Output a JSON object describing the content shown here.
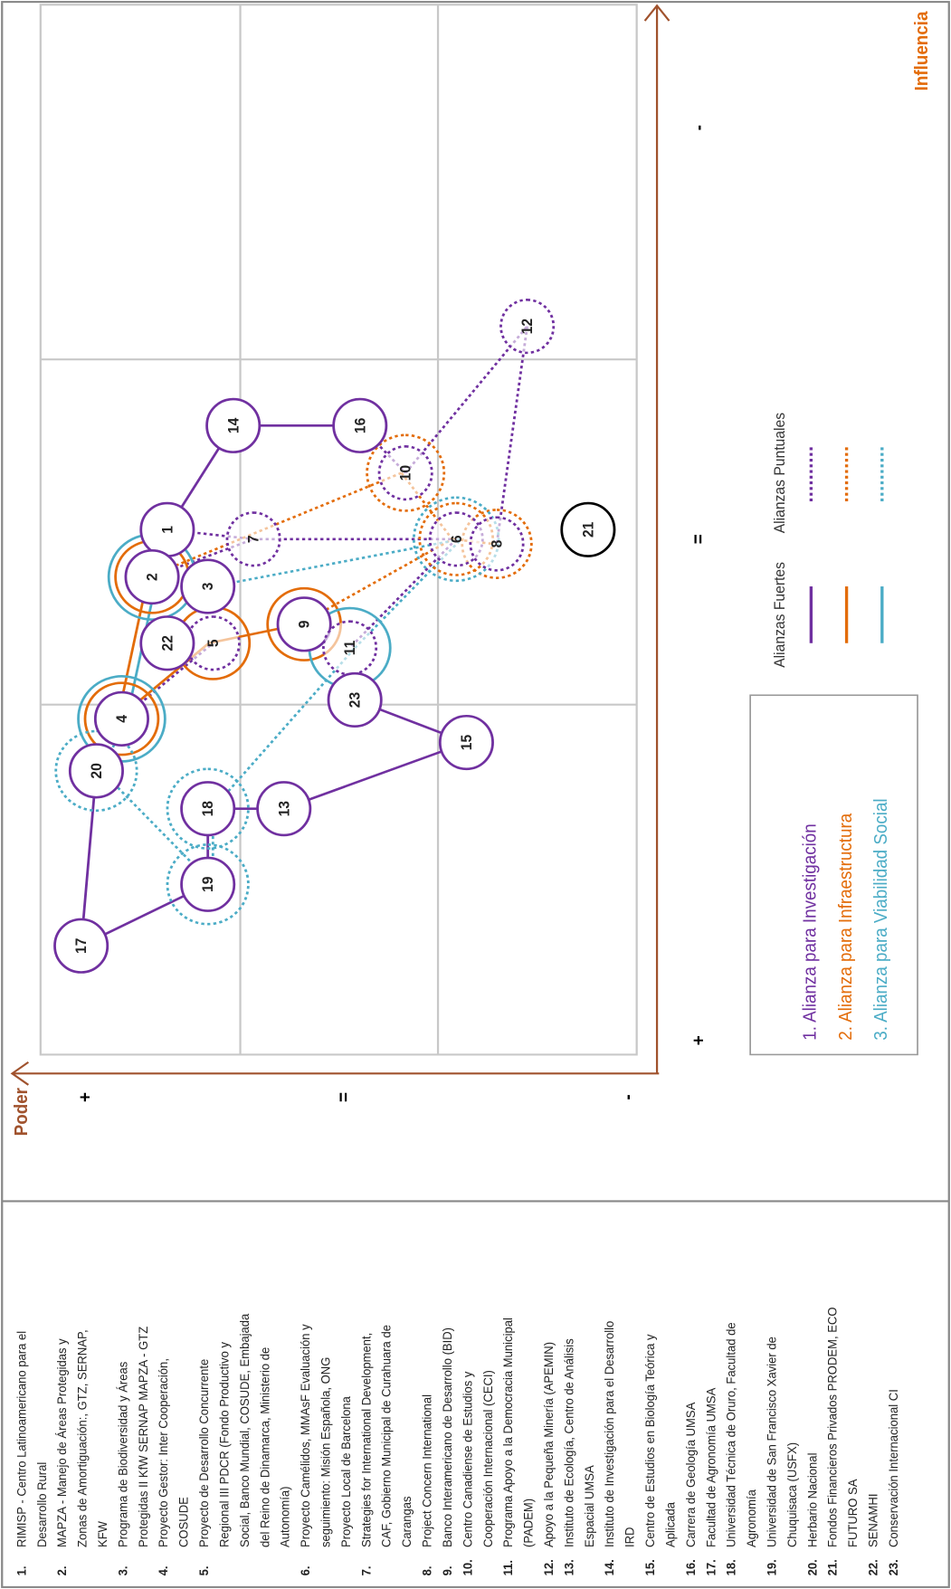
{
  "list": [
    {
      "number": "1.",
      "lines": [
        "RIMISP - Centro Latinoamericano para el",
        "Desarrollo Rural"
      ]
    },
    {
      "number": "2.",
      "lines": [
        "MAPZA - Manejo de Áreas Protegidas y",
        "Zonas de Amortiguación:, GTZ, SERNAP,",
        "KFW"
      ]
    },
    {
      "number": "3.",
      "lines": [
        "Programa de Biodiversidad y Áreas",
        "Protegidas II  KfW SERNAP MAPZA - GTZ"
      ]
    },
    {
      "number": "4.",
      "lines": [
        "Proyecto Gestor: Inter Cooperación,",
        "COSUDE"
      ]
    },
    {
      "number": "5.",
      "lines": [
        "Proyecto de Desarrollo Concurrente",
        "Regional III PDCR (Fondo Productivo y",
        "Social, Banco Mundial, COSUDE, Embajada",
        "del Reino de Dinamarca, Ministerio de",
        "Autonomía)"
      ]
    },
    {
      "number": "6.",
      "lines": [
        "Proyecto Camélidos, MMAsF Evaluación y",
        "seguimiento: Misión Española, ONG",
        "Proyecto Local de Barcelona"
      ]
    },
    {
      "number": "7.",
      "lines": [
        "Strategies for International Development,",
        "CAF, Gobierno Municipal de Curahuara de",
        "Carangas"
      ]
    },
    {
      "number": "8.",
      "lines": [
        "Project Concern International"
      ]
    },
    {
      "number": "9.",
      "lines": [
        "Banco Interamericano de Desarrollo (BID)"
      ]
    },
    {
      "number": "10.",
      "lines": [
        "Centro Canadiense de Estudios y",
        "Cooperación Internacional (CECI)"
      ]
    },
    {
      "number": "11.",
      "lines": [
        "Programa Apoyo a la Democracia Municipal",
        "(PADEM)"
      ]
    },
    {
      "number": "12.",
      "lines": [
        "Apoyo a la Pequeña Minería (APEMIN)"
      ]
    },
    {
      "number": "13.",
      "lines": [
        "Instituto de Ecología, Centro de Análisis",
        "Espacial UMSA"
      ]
    },
    {
      "number": "14.",
      "lines": [
        "Instituto de Investigación para el Desarrollo",
        "IRD"
      ]
    },
    {
      "number": "15.",
      "lines": [
        "Centro de Estudios en Biología Teórica y",
        "Aplicada"
      ]
    },
    {
      "number": "16.",
      "lines": [
        "Carrera de Geología UMSA"
      ]
    },
    {
      "number": "17.",
      "lines": [
        "Facultad de Agronomía UMSA"
      ]
    },
    {
      "number": "18.",
      "lines": [
        "Universidad Técnica de Oruro, Facultad de",
        "Agronomía"
      ]
    },
    {
      "number": "19.",
      "lines": [
        "Universidad de San Francisco Xavier de",
        "Chuquisaca (USFX)"
      ]
    },
    {
      "number": "20.",
      "lines": [
        "Herbario Nacional"
      ]
    },
    {
      "number": "21.",
      "lines": [
        "Fondos Financieros Privados PRODEM, ECO",
        "FUTURO SA"
      ]
    },
    {
      "number": "22.",
      "lines": [
        "SENAMHI"
      ]
    },
    {
      "number": "23.",
      "lines": [
        "Conservación Internacional CI"
      ]
    }
  ],
  "chart": {
    "power_axis": {
      "label": "Poder",
      "marks": [
        "+",
        "=",
        "-"
      ]
    },
    "influence_axis": {
      "label": "Influencia",
      "marks": [
        "+",
        "=",
        "-"
      ]
    },
    "nodes": [
      "1",
      "2",
      "3",
      "4",
      "5",
      "6",
      "7",
      "8",
      "9",
      "10",
      "11",
      "12",
      "13",
      "14",
      "15",
      "16",
      "17",
      "18",
      "19",
      "20",
      "21",
      "22",
      "23"
    ],
    "legend": {
      "headings": [
        "Alianzas Fuertes",
        "Alianzas Puntuales"
      ],
      "items": [
        "1. Alianza para Investigación",
        "2. Alianza para Infraestructura",
        "3. Alianza para Viabilidad Social"
      ]
    }
  }
}
